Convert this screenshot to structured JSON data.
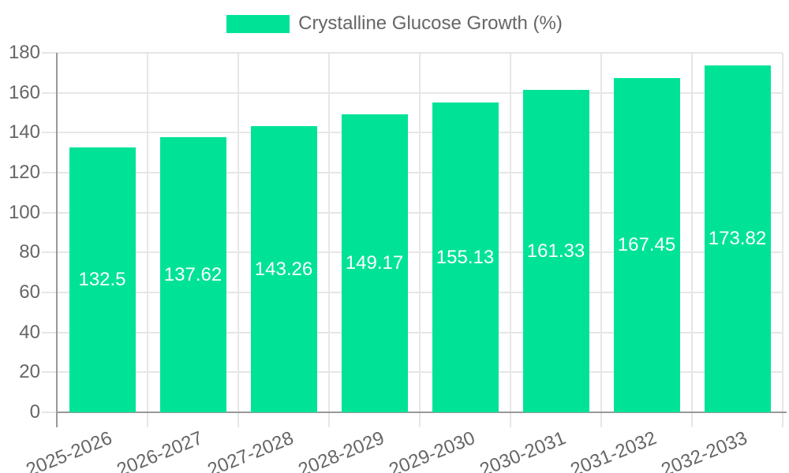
{
  "legend": {
    "label": "Crystalline Glucose Growth (%)"
  },
  "chart_data": {
    "type": "bar",
    "title": "",
    "xlabel": "",
    "ylabel": "",
    "categories": [
      "2025-2026",
      "2026-2027",
      "2027-2028",
      "2028-2029",
      "2029-2030",
      "2030-2031",
      "2031-2032",
      "2032-2033"
    ],
    "series": [
      {
        "name": "Crystalline Glucose Growth (%)",
        "values": [
          132.5,
          137.62,
          143.26,
          149.17,
          155.13,
          161.33,
          167.45,
          173.82
        ]
      }
    ],
    "ylim": [
      0,
      180
    ],
    "ytick_step": 20,
    "ytick_labels": [
      "0",
      "20",
      "40",
      "60",
      "80",
      "100",
      "120",
      "140",
      "160",
      "180"
    ],
    "grid": true,
    "legend_position": "top",
    "x_tick_rotation_deg": -22,
    "colors": {
      "bar": "#00e396",
      "value_label": "#ffffff",
      "tick_label": "#666666",
      "grid_line": "#e6e6e6",
      "axis_line": "#999999",
      "background": "#ffffff"
    }
  }
}
